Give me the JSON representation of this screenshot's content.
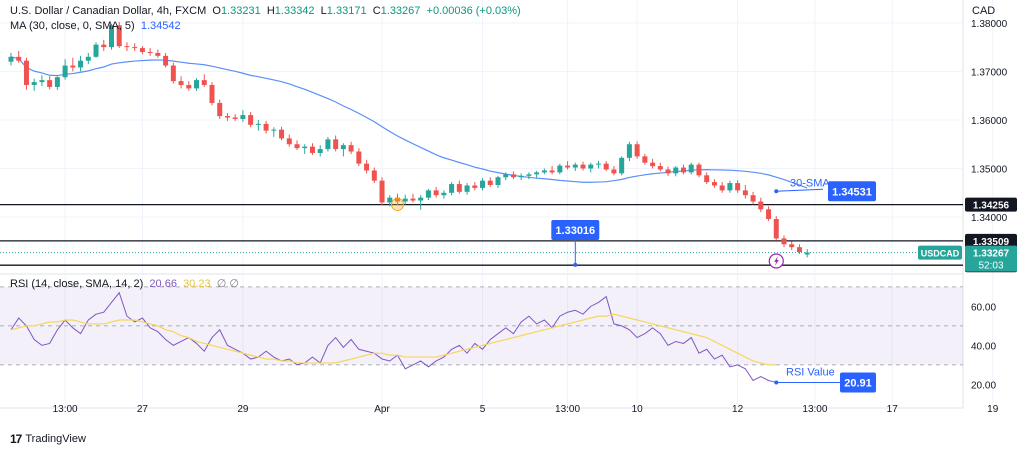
{
  "header": {
    "symbol_title": "U.S. Dollar / Canadian Dollar, 4h, FXCM",
    "ohlc": {
      "o_label": "O",
      "o": "1.33231",
      "h_label": "H",
      "h": "1.33342",
      "l_label": "L",
      "l": "1.33171",
      "c_label": "C",
      "c": "1.33267",
      "change": "+0.00036 (+0.03%)"
    },
    "ma_legend": "MA (30, close, 0, SMA, 5)",
    "ma_value": "1.34542",
    "rsi_legend": "RSI (14, close, SMA, 14, 2)",
    "rsi_value": "20.66",
    "rsi_ma_value": "30.23",
    "rsi_extra": "∅ ∅"
  },
  "currency": "CAD",
  "brand": {
    "logo": "17",
    "name": "TradingView"
  },
  "colors": {
    "up": "#26a69a",
    "down": "#ef5350",
    "ma": "#5b8ff9",
    "rsi": "#7e57c2",
    "rsi_ma": "#f5d65c",
    "badge": "#2962ff",
    "price_tag": "#26a69a"
  },
  "chart_data": [
    {
      "type": "candlestick",
      "series_name": "USDCAD",
      "y_axis_ticks": [
        1.38,
        1.37,
        1.36,
        1.35,
        1.34
      ],
      "y_tick_labels": [
        "1.38000",
        "1.37000",
        "1.36000",
        "1.35000",
        "1.34000"
      ],
      "ylim": [
        1.3291,
        1.3847
      ],
      "x_tick_labels": [
        {
          "label": "13:00",
          "i": 7
        },
        {
          "label": "27",
          "i": 17
        },
        {
          "label": "29",
          "i": 30
        },
        {
          "label": "Apr",
          "i": 48
        },
        {
          "label": "5",
          "i": 61
        },
        {
          "label": "13:00",
          "i": 72
        },
        {
          "label": "10",
          "i": 81
        },
        {
          "label": "12",
          "i": 94
        },
        {
          "label": "13:00",
          "i": 104
        },
        {
          "label": "17",
          "i": 114
        },
        {
          "label": "19",
          "i": 127
        }
      ],
      "horizontal_lines": [
        {
          "value": 1.34256,
          "label": "1.34256"
        },
        {
          "value": 1.33509,
          "label": "1.33509"
        },
        {
          "value": 1.33009,
          "label": "1.33009"
        }
      ],
      "current_price": {
        "value": 1.33267,
        "label": "1.33267",
        "symbol": "USDCAD",
        "countdown": "52:03"
      },
      "annotations": [
        {
          "text": "30-SMA",
          "badge": "1.34531",
          "value": 1.34531
        },
        {
          "badge": "1.33016",
          "value": 1.33016
        }
      ],
      "candles": [
        [
          1.372,
          1.3738,
          1.3712,
          1.373
        ],
        [
          1.373,
          1.3742,
          1.3718,
          1.3722
        ],
        [
          1.3722,
          1.3728,
          1.3662,
          1.3672
        ],
        [
          1.3672,
          1.3685,
          1.366,
          1.3678
        ],
        [
          1.3678,
          1.3692,
          1.367,
          1.3682
        ],
        [
          1.3682,
          1.369,
          1.3663,
          1.3668
        ],
        [
          1.3668,
          1.369,
          1.3662,
          1.3688
        ],
        [
          1.3688,
          1.3725,
          1.3683,
          1.3712
        ],
        [
          1.3712,
          1.3728,
          1.37,
          1.3708
        ],
        [
          1.3708,
          1.3732,
          1.37,
          1.3722
        ],
        [
          1.3722,
          1.3738,
          1.3715,
          1.373
        ],
        [
          1.373,
          1.376,
          1.3728,
          1.3755
        ],
        [
          1.3755,
          1.3765,
          1.3742,
          1.375
        ],
        [
          1.375,
          1.3798,
          1.3745,
          1.3795
        ],
        [
          1.3795,
          1.3802,
          1.3748,
          1.3752
        ],
        [
          1.3752,
          1.376,
          1.3742,
          1.375
        ],
        [
          1.375,
          1.3758,
          1.3742,
          1.3748
        ],
        [
          1.3748,
          1.3752,
          1.3735,
          1.374
        ],
        [
          1.374,
          1.3748,
          1.3732,
          1.3738
        ],
        [
          1.3738,
          1.3745,
          1.3728,
          1.3732
        ],
        [
          1.3732,
          1.3738,
          1.3708,
          1.3712
        ],
        [
          1.3712,
          1.3718,
          1.3675,
          1.368
        ],
        [
          1.368,
          1.369,
          1.3665,
          1.3672
        ],
        [
          1.3672,
          1.368,
          1.366,
          1.3665
        ],
        [
          1.3665,
          1.3686,
          1.366,
          1.3682
        ],
        [
          1.3682,
          1.3694,
          1.3668,
          1.3672
        ],
        [
          1.3672,
          1.3678,
          1.363,
          1.3635
        ],
        [
          1.3635,
          1.3642,
          1.3602,
          1.3608
        ],
        [
          1.3608,
          1.3614,
          1.3598,
          1.3605
        ],
        [
          1.3605,
          1.3612,
          1.3598,
          1.3602
        ],
        [
          1.3602,
          1.362,
          1.3596,
          1.361
        ],
        [
          1.361,
          1.3616,
          1.3585,
          1.359
        ],
        [
          1.359,
          1.36,
          1.3578,
          1.3592
        ],
        [
          1.3592,
          1.3598,
          1.3572,
          1.3578
        ],
        [
          1.3578,
          1.3585,
          1.3565,
          1.358
        ],
        [
          1.358,
          1.3586,
          1.3558,
          1.3562
        ],
        [
          1.3562,
          1.357,
          1.3545,
          1.355
        ],
        [
          1.355,
          1.3558,
          1.3538,
          1.3542
        ],
        [
          1.3542,
          1.355,
          1.353,
          1.3545
        ],
        [
          1.3545,
          1.3552,
          1.3528,
          1.3532
        ],
        [
          1.3532,
          1.3548,
          1.3525,
          1.354
        ],
        [
          1.354,
          1.3565,
          1.3535,
          1.356
        ],
        [
          1.356,
          1.3568,
          1.3535,
          1.354
        ],
        [
          1.354,
          1.3552,
          1.3525,
          1.3548
        ],
        [
          1.3548,
          1.3555,
          1.353,
          1.3535
        ],
        [
          1.3535,
          1.3542,
          1.3505,
          1.351
        ],
        [
          1.351,
          1.3518,
          1.349,
          1.3496
        ],
        [
          1.3496,
          1.3502,
          1.347,
          1.3475
        ],
        [
          1.3475,
          1.3482,
          1.3425,
          1.343
        ],
        [
          1.343,
          1.3445,
          1.3422,
          1.344
        ],
        [
          1.344,
          1.3448,
          1.3425,
          1.3432
        ],
        [
          1.3432,
          1.3446,
          1.3426,
          1.3438
        ],
        [
          1.3438,
          1.3448,
          1.343,
          1.3434
        ],
        [
          1.3434,
          1.3445,
          1.3415,
          1.344
        ],
        [
          1.344,
          1.3458,
          1.3435,
          1.3455
        ],
        [
          1.3455,
          1.3462,
          1.344,
          1.3445
        ],
        [
          1.3445,
          1.3455,
          1.3438,
          1.345
        ],
        [
          1.345,
          1.3472,
          1.3445,
          1.3468
        ],
        [
          1.3468,
          1.3475,
          1.3448,
          1.3452
        ],
        [
          1.3452,
          1.347,
          1.3446,
          1.3465
        ],
        [
          1.3465,
          1.3472,
          1.3455,
          1.346
        ],
        [
          1.346,
          1.348,
          1.3455,
          1.3475
        ],
        [
          1.3475,
          1.3482,
          1.3462,
          1.3466
        ],
        [
          1.3466,
          1.3485,
          1.346,
          1.3482
        ],
        [
          1.3482,
          1.3492,
          1.3476,
          1.3488
        ],
        [
          1.3488,
          1.3494,
          1.3478,
          1.3482
        ],
        [
          1.3482,
          1.349,
          1.3476,
          1.3485
        ],
        [
          1.3485,
          1.3492,
          1.3478,
          1.3488
        ],
        [
          1.3488,
          1.3495,
          1.348,
          1.3492
        ],
        [
          1.3492,
          1.35,
          1.3488,
          1.3496
        ],
        [
          1.3496,
          1.3505,
          1.3488,
          1.3492
        ],
        [
          1.3492,
          1.351,
          1.3488,
          1.3506
        ],
        [
          1.3506,
          1.3515,
          1.3498,
          1.3502
        ],
        [
          1.3502,
          1.3512,
          1.3495,
          1.3508
        ],
        [
          1.3508,
          1.3514,
          1.3496,
          1.35
        ],
        [
          1.35,
          1.3512,
          1.3492,
          1.3508
        ],
        [
          1.3508,
          1.3516,
          1.35,
          1.351
        ],
        [
          1.351,
          1.3515,
          1.3495,
          1.3498
        ],
        [
          1.3498,
          1.3505,
          1.3486,
          1.349
        ],
        [
          1.349,
          1.3525,
          1.3486,
          1.3522
        ],
        [
          1.3522,
          1.3555,
          1.3515,
          1.355
        ],
        [
          1.355,
          1.3556,
          1.352,
          1.3525
        ],
        [
          1.3525,
          1.353,
          1.3508,
          1.3512
        ],
        [
          1.3512,
          1.352,
          1.35,
          1.3505
        ],
        [
          1.3505,
          1.3512,
          1.3494,
          1.3498
        ],
        [
          1.3498,
          1.3504,
          1.3485,
          1.349
        ],
        [
          1.349,
          1.3505,
          1.3484,
          1.3502
        ],
        [
          1.3502,
          1.3508,
          1.3488,
          1.3492
        ],
        [
          1.3492,
          1.3512,
          1.3488,
          1.3508
        ],
        [
          1.3508,
          1.3512,
          1.3482,
          1.3486
        ],
        [
          1.3486,
          1.3492,
          1.3468,
          1.3472
        ],
        [
          1.3472,
          1.3478,
          1.346,
          1.3465
        ],
        [
          1.3465,
          1.3472,
          1.345,
          1.3455
        ],
        [
          1.3455,
          1.3475,
          1.345,
          1.347
        ],
        [
          1.347,
          1.3476,
          1.345,
          1.3455
        ],
        [
          1.3455,
          1.3466,
          1.3438,
          1.3445
        ],
        [
          1.3445,
          1.3452,
          1.3426,
          1.3432
        ],
        [
          1.3432,
          1.344,
          1.341,
          1.3416
        ],
        [
          1.3416,
          1.3422,
          1.3392,
          1.3396
        ],
        [
          1.3396,
          1.3402,
          1.3352,
          1.3356
        ],
        [
          1.3356,
          1.3362,
          1.3338,
          1.3344
        ],
        [
          1.3344,
          1.335,
          1.3332,
          1.3338
        ],
        [
          1.3338,
          1.3344,
          1.3324,
          1.3328
        ],
        [
          1.3323,
          1.3334,
          1.3317,
          1.3327
        ]
      ]
    },
    {
      "type": "line",
      "series_name": "RSI",
      "y_axis_ticks": [
        60,
        40,
        20
      ],
      "y_tick_labels": [
        "60.00",
        "40.00",
        "20.00"
      ],
      "ylim": [
        12,
        73
      ],
      "band": [
        30,
        70
      ],
      "midline": 50,
      "badge": {
        "text": "RSI Value",
        "value": "20.91"
      },
      "rsi": [
        48,
        54,
        50,
        43,
        40,
        41,
        48,
        53,
        49,
        46,
        53,
        56,
        57,
        62,
        67,
        55,
        52,
        54,
        49,
        47,
        43,
        40,
        42,
        44,
        41,
        37,
        44,
        48,
        40,
        38,
        36,
        33,
        34,
        37,
        34,
        32,
        33,
        30,
        31,
        34,
        31,
        40,
        44,
        39,
        43,
        38,
        37,
        36,
        33,
        32,
        35,
        28,
        30,
        32,
        29,
        32,
        34,
        38,
        40,
        36,
        41,
        38,
        43,
        46,
        49,
        46,
        52,
        55,
        51,
        53,
        49,
        55,
        57,
        58,
        56,
        60,
        62,
        65,
        51,
        50,
        48,
        44,
        46,
        49,
        46,
        40,
        42,
        41,
        44,
        36,
        38,
        33,
        35,
        29,
        30,
        28,
        22,
        24,
        22,
        21
      ],
      "rsi_ma": [
        48,
        49,
        50,
        50,
        51,
        52,
        52,
        53,
        53,
        52,
        51,
        51,
        51,
        52,
        53,
        53,
        53,
        52,
        51,
        50,
        48,
        47,
        45,
        44,
        42,
        41,
        40,
        39,
        38,
        37,
        36,
        35,
        34,
        33,
        33,
        32,
        32,
        31,
        31,
        31,
        31,
        31,
        31,
        32,
        33,
        34,
        35,
        36,
        36,
        35,
        35,
        34,
        34,
        34,
        34,
        34,
        35,
        36,
        37,
        38,
        39,
        40,
        41,
        42,
        43,
        44,
        45,
        46,
        47,
        48,
        49,
        50,
        51,
        52,
        53,
        54,
        55,
        55,
        56,
        55,
        54,
        53,
        52,
        51,
        50,
        49,
        48,
        47,
        46,
        45,
        44,
        42,
        40,
        38,
        36,
        34,
        32,
        31,
        30,
        30
      ]
    }
  ]
}
